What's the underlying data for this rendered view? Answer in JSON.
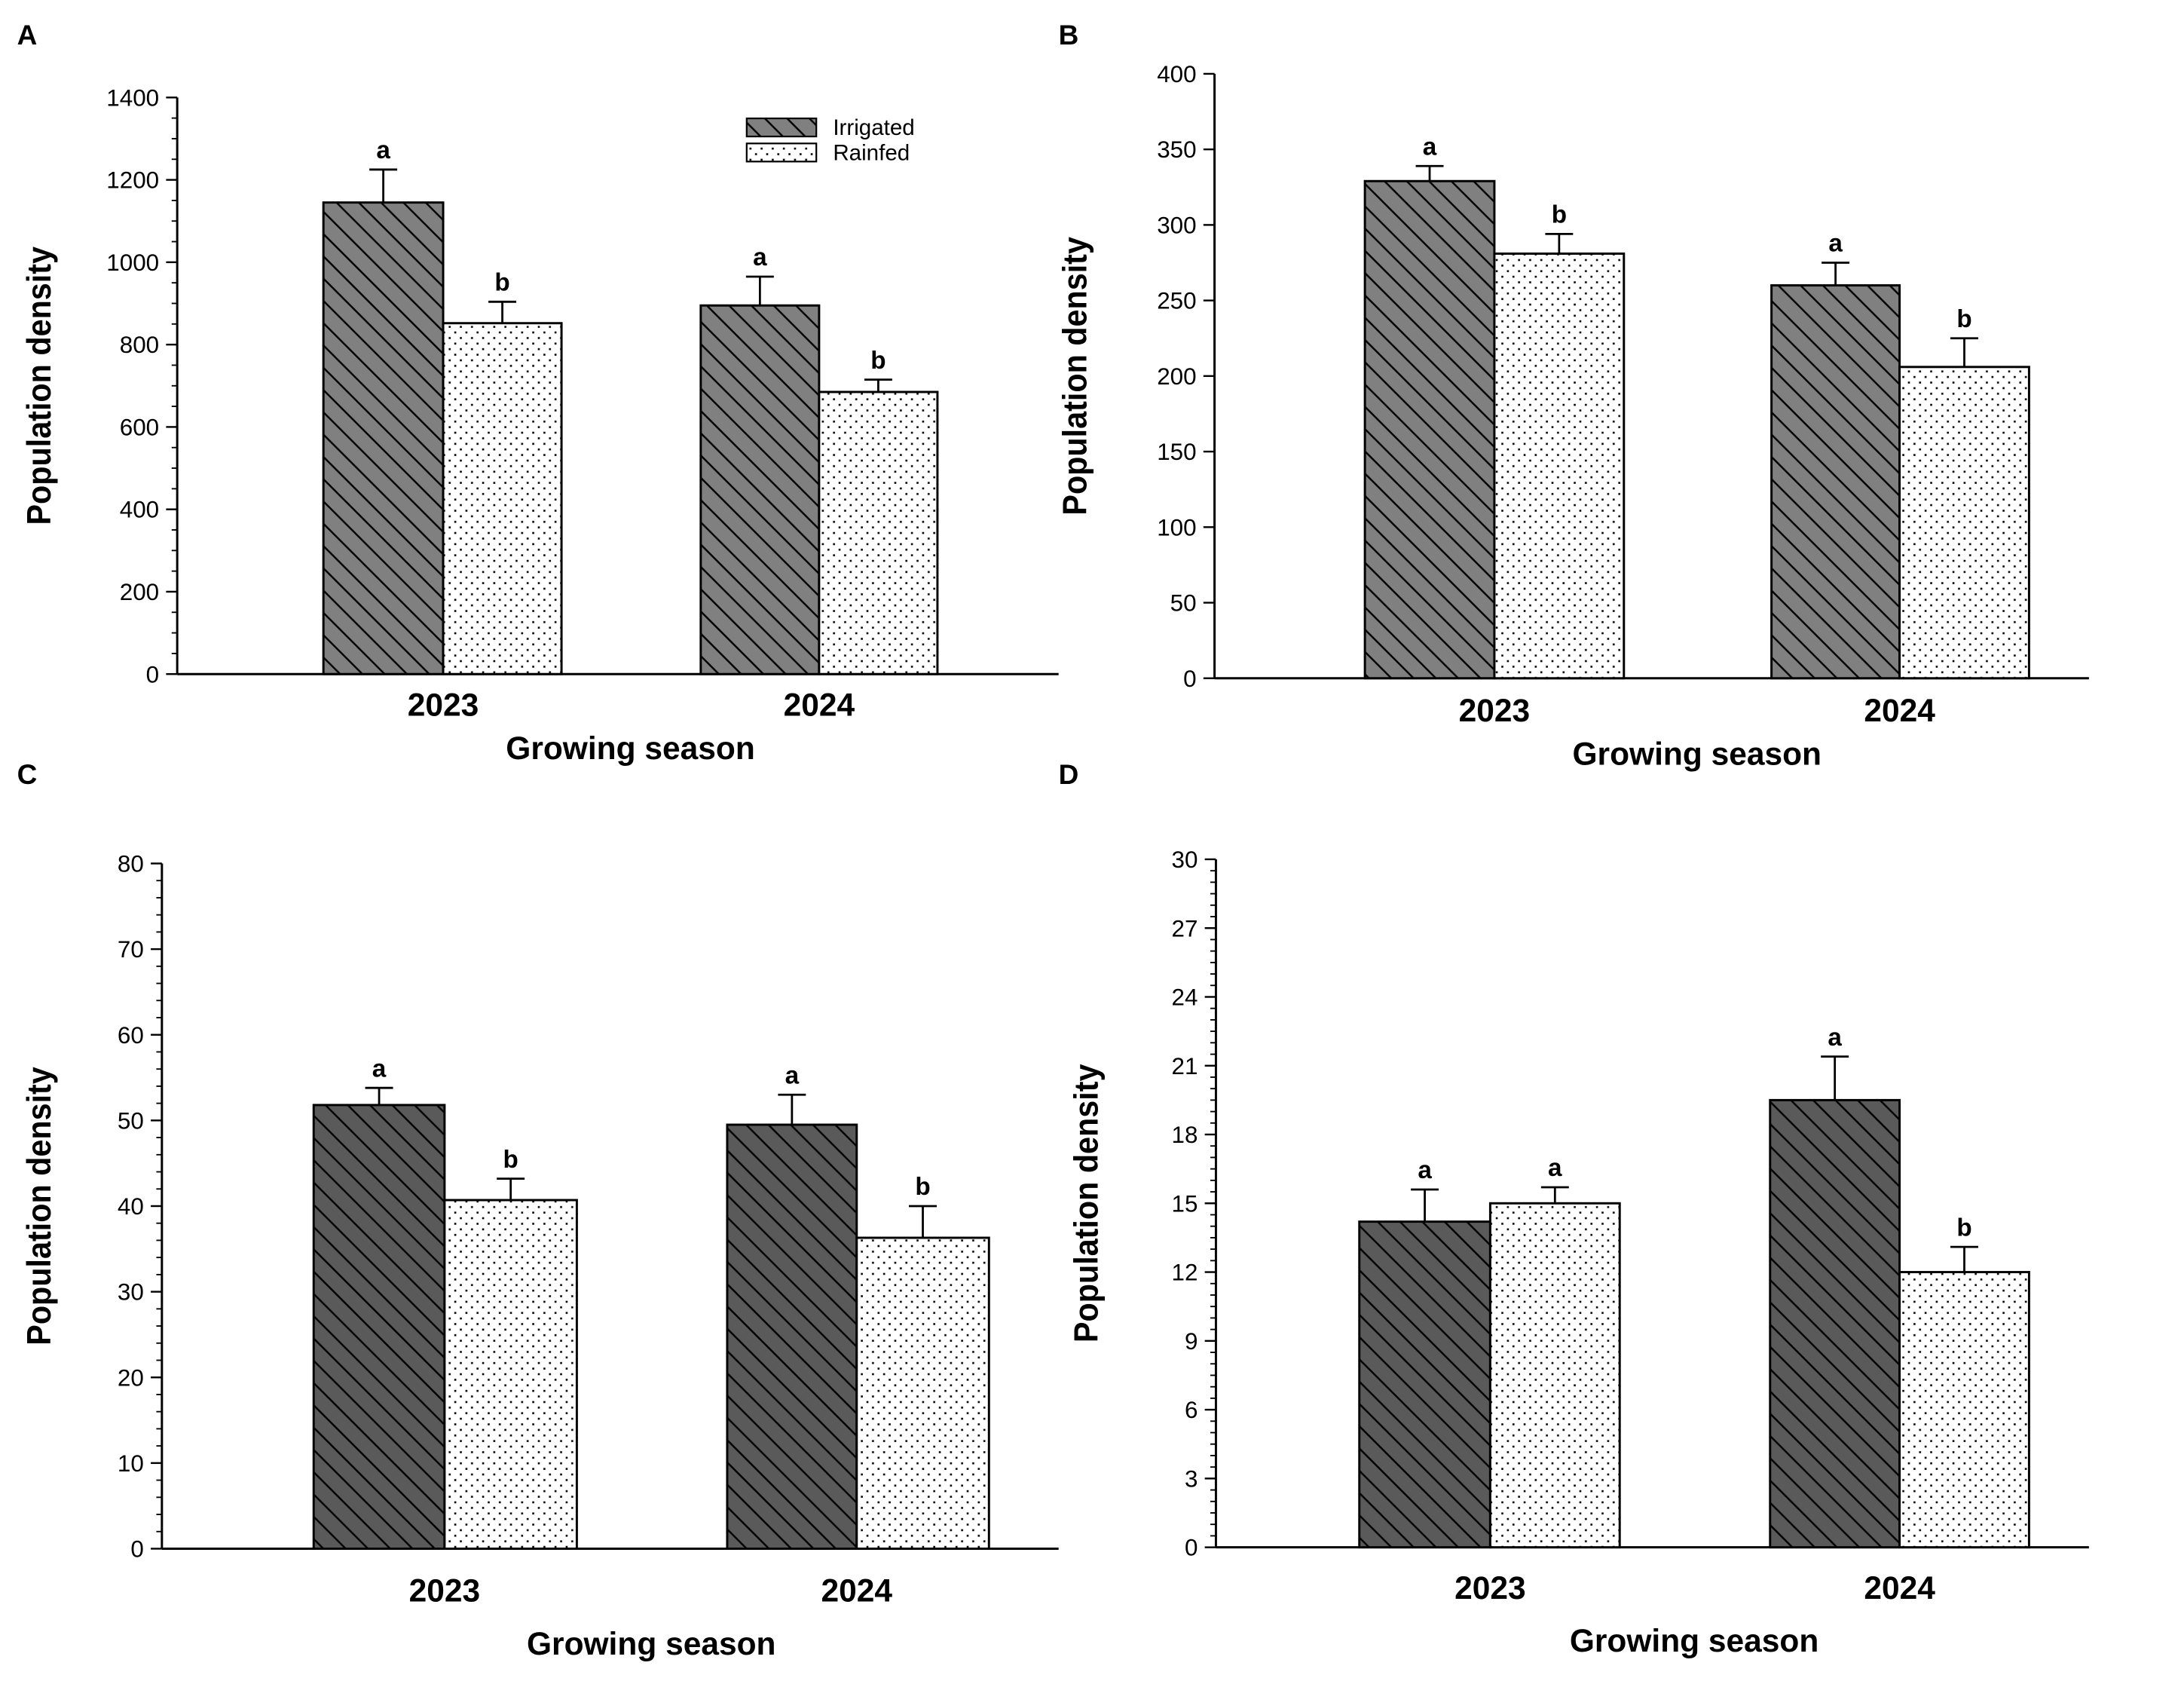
{
  "colors": {
    "irrigated_AB": "#808080",
    "irrigated_CD": "#5a5a5a",
    "rainfed": "#ffffff"
  },
  "chart_data": [
    {
      "panel": "A",
      "type": "bar",
      "categories": [
        "2023",
        "2024"
      ],
      "xlabel": "Growing season",
      "ylabel": "Population density",
      "ylim": [
        0,
        1400
      ],
      "yticks": [
        0,
        200,
        400,
        600,
        800,
        1000,
        1200,
        1400
      ],
      "legend": {
        "placement": "top-right",
        "entries": [
          "Irrigated",
          "Rainfed"
        ]
      },
      "series": [
        {
          "name": "Irrigated",
          "values": [
            1145,
            895
          ],
          "errors": [
            80,
            70
          ],
          "letters": [
            "a",
            "a"
          ]
        },
        {
          "name": "Rainfed",
          "values": [
            852,
            685
          ],
          "errors": [
            52,
            30
          ],
          "letters": [
            "b",
            "b"
          ]
        }
      ]
    },
    {
      "panel": "B",
      "type": "bar",
      "categories": [
        "2023",
        "2024"
      ],
      "xlabel": "Growing season",
      "ylabel": "Population density",
      "ylim": [
        0,
        400
      ],
      "yticks": [
        0,
        50,
        100,
        150,
        200,
        250,
        300,
        350,
        400
      ],
      "series": [
        {
          "name": "Irrigated",
          "values": [
            329,
            260
          ],
          "errors": [
            10,
            15
          ],
          "letters": [
            "a",
            "a"
          ]
        },
        {
          "name": "Rainfed",
          "values": [
            281,
            206
          ],
          "errors": [
            13,
            19
          ],
          "letters": [
            "b",
            "b"
          ]
        }
      ]
    },
    {
      "panel": "C",
      "type": "bar",
      "categories": [
        "2023",
        "2024"
      ],
      "xlabel": "Growing season",
      "ylabel": "Population density",
      "ylim": [
        0,
        80
      ],
      "yticks": [
        0,
        10,
        20,
        30,
        40,
        50,
        60,
        70,
        80
      ],
      "series": [
        {
          "name": "Irrigated",
          "values": [
            51.8,
            49.5
          ],
          "errors": [
            2.0,
            3.5
          ],
          "letters": [
            "a",
            "a"
          ]
        },
        {
          "name": "Rainfed",
          "values": [
            40.7,
            36.3
          ],
          "errors": [
            2.5,
            3.7
          ],
          "letters": [
            "b",
            "b"
          ]
        }
      ]
    },
    {
      "panel": "D",
      "type": "bar",
      "categories": [
        "2023",
        "2024"
      ],
      "xlabel": "Growing season",
      "ylabel": "Population density",
      "ylim": [
        0,
        30
      ],
      "yticks": [
        0,
        3,
        6,
        9,
        12,
        15,
        18,
        21,
        24,
        27,
        30
      ],
      "series": [
        {
          "name": "Irrigated",
          "values": [
            14.2,
            19.5
          ],
          "errors": [
            1.4,
            1.9
          ],
          "letters": [
            "a",
            "a"
          ]
        },
        {
          "name": "Rainfed",
          "values": [
            15.0,
            12.0
          ],
          "errors": [
            0.7,
            1.1
          ],
          "letters": [
            "a",
            "b"
          ]
        }
      ]
    }
  ]
}
